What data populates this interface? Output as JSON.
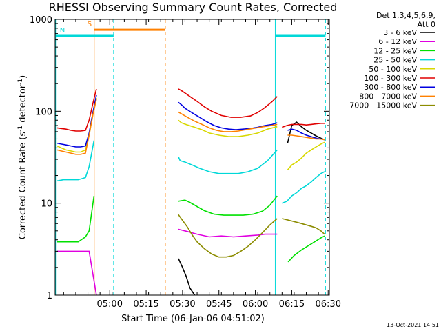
{
  "title": "RHESSI Observing Summary Count Rates, Corrected",
  "footer_date": "13-Oct-2021 14:51",
  "legend_header": [
    "Det 1,3,4,5,6,9,",
    "Att 0"
  ],
  "colors": {
    "background": "#ffffff",
    "axes": "#000000",
    "night": "#00d8d8",
    "saa": "#ff8000"
  },
  "chart_data": {
    "type": "line",
    "title": "RHESSI Observing Summary Count Rates, Corrected",
    "xlabel": "Start Time (06-Jan-06 04:51:02)",
    "ylabel": "Corrected Count Rate (s⁻¹ detector⁻¹)",
    "x_unit": "minutes after 04:51:02",
    "xlim": [
      -13.5,
      99.5
    ],
    "ylim": [
      1,
      1000
    ],
    "y_scale": "log",
    "xticks": [
      {
        "label": "05:00",
        "value": 9
      },
      {
        "label": "05:15",
        "value": 24
      },
      {
        "label": "05:30",
        "value": 39
      },
      {
        "label": "05:45",
        "value": 54
      },
      {
        "label": "06:00",
        "value": 69
      },
      {
        "label": "06:15",
        "value": 84
      },
      {
        "label": "06:30",
        "value": 99
      }
    ],
    "yticks": [
      {
        "label": "1",
        "value": 1
      },
      {
        "label": "10",
        "value": 10
      },
      {
        "label": "100",
        "value": 100
      },
      {
        "label": "1000",
        "value": 1000
      }
    ],
    "legend_position": "top-right",
    "series": [
      {
        "name": "3 - 6 keV",
        "color": "#000000",
        "segments": [
          {
            "x": [
              37.3,
              39,
              40.5,
              42,
              44
            ],
            "y": [
              2.5,
              2.0,
              1.6,
              1.2,
              1.0
            ]
          },
          {
            "x": [
              82.3,
              84,
              86,
              88,
              90,
              92,
              94,
              96,
              97.5
            ],
            "y": [
              45,
              70,
              76,
              68,
              62,
              58,
              54,
              51,
              49
            ]
          }
        ]
      },
      {
        "name": "6 - 12 keV",
        "color": "#e000e0",
        "segments": [
          {
            "x": [
              -12.7,
              -10,
              -7,
              -4,
              -1,
              0.5,
              3.5
            ],
            "y": [
              3.0,
              3.0,
              3.0,
              3.0,
              3.0,
              3.0,
              1.0
            ]
          },
          {
            "x": [
              37.3,
              40,
              45,
              50,
              55,
              60,
              65,
              70,
              73,
              78
            ],
            "y": [
              5.2,
              5.0,
              4.6,
              4.3,
              4.4,
              4.3,
              4.4,
              4.5,
              4.6,
              4.6
            ]
          }
        ]
      },
      {
        "name": "12 - 25 keV",
        "color": "#00e000",
        "segments": [
          {
            "x": [
              -12.7,
              -10,
              -7,
              -4,
              -1,
              0.5,
              2.5
            ],
            "y": [
              3.8,
              3.8,
              3.8,
              3.8,
              4.3,
              5.0,
              12.0
            ]
          },
          {
            "x": [
              37.3,
              40,
              42,
              45,
              48,
              52,
              56,
              60,
              64,
              68,
              72,
              75,
              78
            ],
            "y": [
              10.5,
              10.8,
              10.2,
              9.2,
              8.3,
              7.6,
              7.4,
              7.4,
              7.4,
              7.6,
              8.2,
              9.5,
              12.0
            ]
          },
          {
            "x": [
              82.5,
              85,
              88,
              92,
              96,
              97.5
            ],
            "y": [
              2.3,
              2.7,
              3.1,
              3.6,
              4.2,
              4.4
            ]
          }
        ]
      },
      {
        "name": "25 - 50 keV",
        "color": "#00d8d8",
        "segments": [
          {
            "x": [
              -12.7,
              -10,
              -7,
              -4,
              -1,
              0.5,
              2.5
            ],
            "y": [
              17.5,
              18,
              18,
              18,
              19,
              25,
              48
            ]
          },
          {
            "x": [
              37.3,
              38,
              40,
              43,
              46,
              50,
              54,
              58,
              62,
              66,
              70,
              74,
              78
            ],
            "y": [
              32,
              29,
              28,
              26,
              24,
              22,
              21,
              21,
              21,
              22,
              24,
              29,
              38
            ]
          },
          {
            "x": [
              80,
              82,
              84,
              86,
              88,
              90,
              92,
              94,
              96,
              97.5
            ],
            "y": [
              10,
              10.5,
              12,
              13,
              14.5,
              15.5,
              17,
              19,
              21,
              22
            ]
          }
        ]
      },
      {
        "name": "50 - 100 keV",
        "color": "#d8d800",
        "segments": [
          {
            "x": [
              -12.7,
              -11,
              -9,
              -7,
              -5,
              -3,
              -1,
              0.5,
              2,
              3.5
            ],
            "y": [
              42,
              40,
              38,
              37,
              36,
              36,
              38,
              55,
              90,
              140
            ]
          },
          {
            "x": [
              37.3,
              38.5,
              41,
              44,
              47,
              50,
              54,
              58,
              62,
              66,
              70,
              74,
              78
            ],
            "y": [
              80,
              75,
              71,
              67,
              63,
              58,
              55,
              53,
              53,
              55,
              58,
              64,
              68
            ]
          },
          {
            "x": [
              82.3,
              84,
              86,
              88,
              90,
              92,
              94,
              96,
              97.5
            ],
            "y": [
              23,
              26,
              28,
              31,
              35,
              38,
              41,
              44,
              46
            ]
          }
        ]
      },
      {
        "name": "100 - 300 keV",
        "color": "#e00000",
        "segments": [
          {
            "x": [
              -12.7,
              -11,
              -9,
              -7,
              -5,
              -3,
              -1,
              0.5,
              2,
              3.5
            ],
            "y": [
              66,
              65,
              64,
              62,
              61,
              61,
              62,
              80,
              120,
              175
            ]
          },
          {
            "x": [
              37.3,
              38.5,
              40,
              42,
              45,
              48,
              51,
              55,
              59,
              63,
              67,
              70,
              73,
              76,
              78
            ],
            "y": [
              175,
              168,
              158,
              145,
              128,
              112,
              100,
              90,
              86,
              86,
              89,
              97,
              110,
              128,
              145
            ]
          },
          {
            "x": [
              80,
              82,
              84,
              86,
              88,
              90,
              92,
              94,
              96,
              97.5
            ],
            "y": [
              67,
              70,
              72,
              72,
              72,
              71,
              72,
              73,
              74,
              74
            ]
          }
        ]
      },
      {
        "name": "300 - 800 keV",
        "color": "#0000e0",
        "segments": [
          {
            "x": [
              -12.7,
              -11,
              -9,
              -7,
              -5,
              -3,
              -1,
              0.5,
              2,
              3.5
            ],
            "y": [
              45,
              44,
              43,
              42,
              41,
              41,
              42,
              58,
              95,
              150
            ]
          },
          {
            "x": [
              37.3,
              38.5,
              40,
              43,
              46,
              49,
              52,
              55,
              58,
              61,
              64,
              67,
              70,
              73,
              76,
              78
            ],
            "y": [
              125,
              118,
              108,
              96,
              86,
              77,
              70,
              66,
              64,
              63,
              64,
              65,
              67,
              70,
              72,
              75
            ]
          },
          {
            "x": [
              82.3,
              84,
              86,
              88,
              90,
              92,
              94,
              96,
              97.5
            ],
            "y": [
              62,
              64,
              62,
              58,
              55,
              53,
              51,
              50,
              49
            ]
          }
        ]
      },
      {
        "name": "800 - 7000 keV",
        "color": "#ff8000",
        "segments": [
          {
            "x": [
              -12.7,
              -11,
              -9,
              -7,
              -5,
              -3,
              -1,
              0.5,
              2,
              3.5
            ],
            "y": [
              38,
              37,
              36,
              35,
              34,
              34,
              35,
              55,
              90,
              135
            ]
          },
          {
            "x": [
              37.3,
              38.5,
              41,
              44,
              47,
              50,
              53,
              56,
              59,
              62,
              65,
              68,
              71,
              74,
              77,
              78
            ],
            "y": [
              98,
              94,
              86,
              78,
              72,
              66,
              62,
              60,
              60,
              61,
              63,
              65,
              67,
              69,
              71,
              72
            ]
          },
          {
            "x": [
              82.3,
              84,
              86,
              88,
              90,
              92,
              94,
              96,
              97.5
            ],
            "y": [
              55,
              55,
              54,
              53,
              52,
              51,
              50,
              50,
              49
            ]
          }
        ]
      },
      {
        "name": "7000 - 15000 keV",
        "color": "#8c8c00",
        "segments": [
          {
            "x": [
              37.3,
              39,
              41,
              43,
              45,
              48,
              51,
              54,
              57,
              60,
              63,
              66,
              69,
              72,
              75,
              78
            ],
            "y": [
              7.5,
              6.5,
              5.5,
              4.5,
              3.8,
              3.2,
              2.8,
              2.6,
              2.6,
              2.7,
              3.0,
              3.4,
              4.0,
              4.8,
              5.8,
              6.8
            ]
          },
          {
            "x": [
              80,
              82,
              84,
              86,
              88,
              90,
              92,
              94,
              96,
              97.5
            ],
            "y": [
              6.8,
              6.6,
              6.4,
              6.2,
              6.0,
              5.8,
              5.6,
              5.4,
              5.0,
              4.6
            ]
          }
        ]
      }
    ],
    "bars": [
      {
        "label": "S",
        "color": "#ff8000",
        "x_start": 2.6,
        "x_end": 31.9,
        "marker_value": 3.0,
        "at_top": 770
      },
      {
        "label": "N",
        "color": "#00d8d8",
        "x_start": -13.3,
        "x_end": 10.6,
        "marker_value": 10.0,
        "at_top": 660
      },
      {
        "label": "",
        "color": "#00d8d8",
        "x_start": 77.2,
        "x_end": 97.9,
        "marker_value": null,
        "at_top": 660
      }
    ],
    "vlines": [
      {
        "x": 2.6,
        "color": "#ff8000",
        "style": "solid"
      },
      {
        "x": 31.9,
        "color": "#ff8000",
        "style": "dashed"
      },
      {
        "x": -13.3,
        "color": "#00d8d8",
        "style": "solid"
      },
      {
        "x": 10.6,
        "color": "#00d8d8",
        "style": "dashed"
      },
      {
        "x": 77.2,
        "color": "#00d8d8",
        "style": "solid"
      },
      {
        "x": 97.9,
        "color": "#00d8d8",
        "style": "dashed"
      }
    ]
  }
}
